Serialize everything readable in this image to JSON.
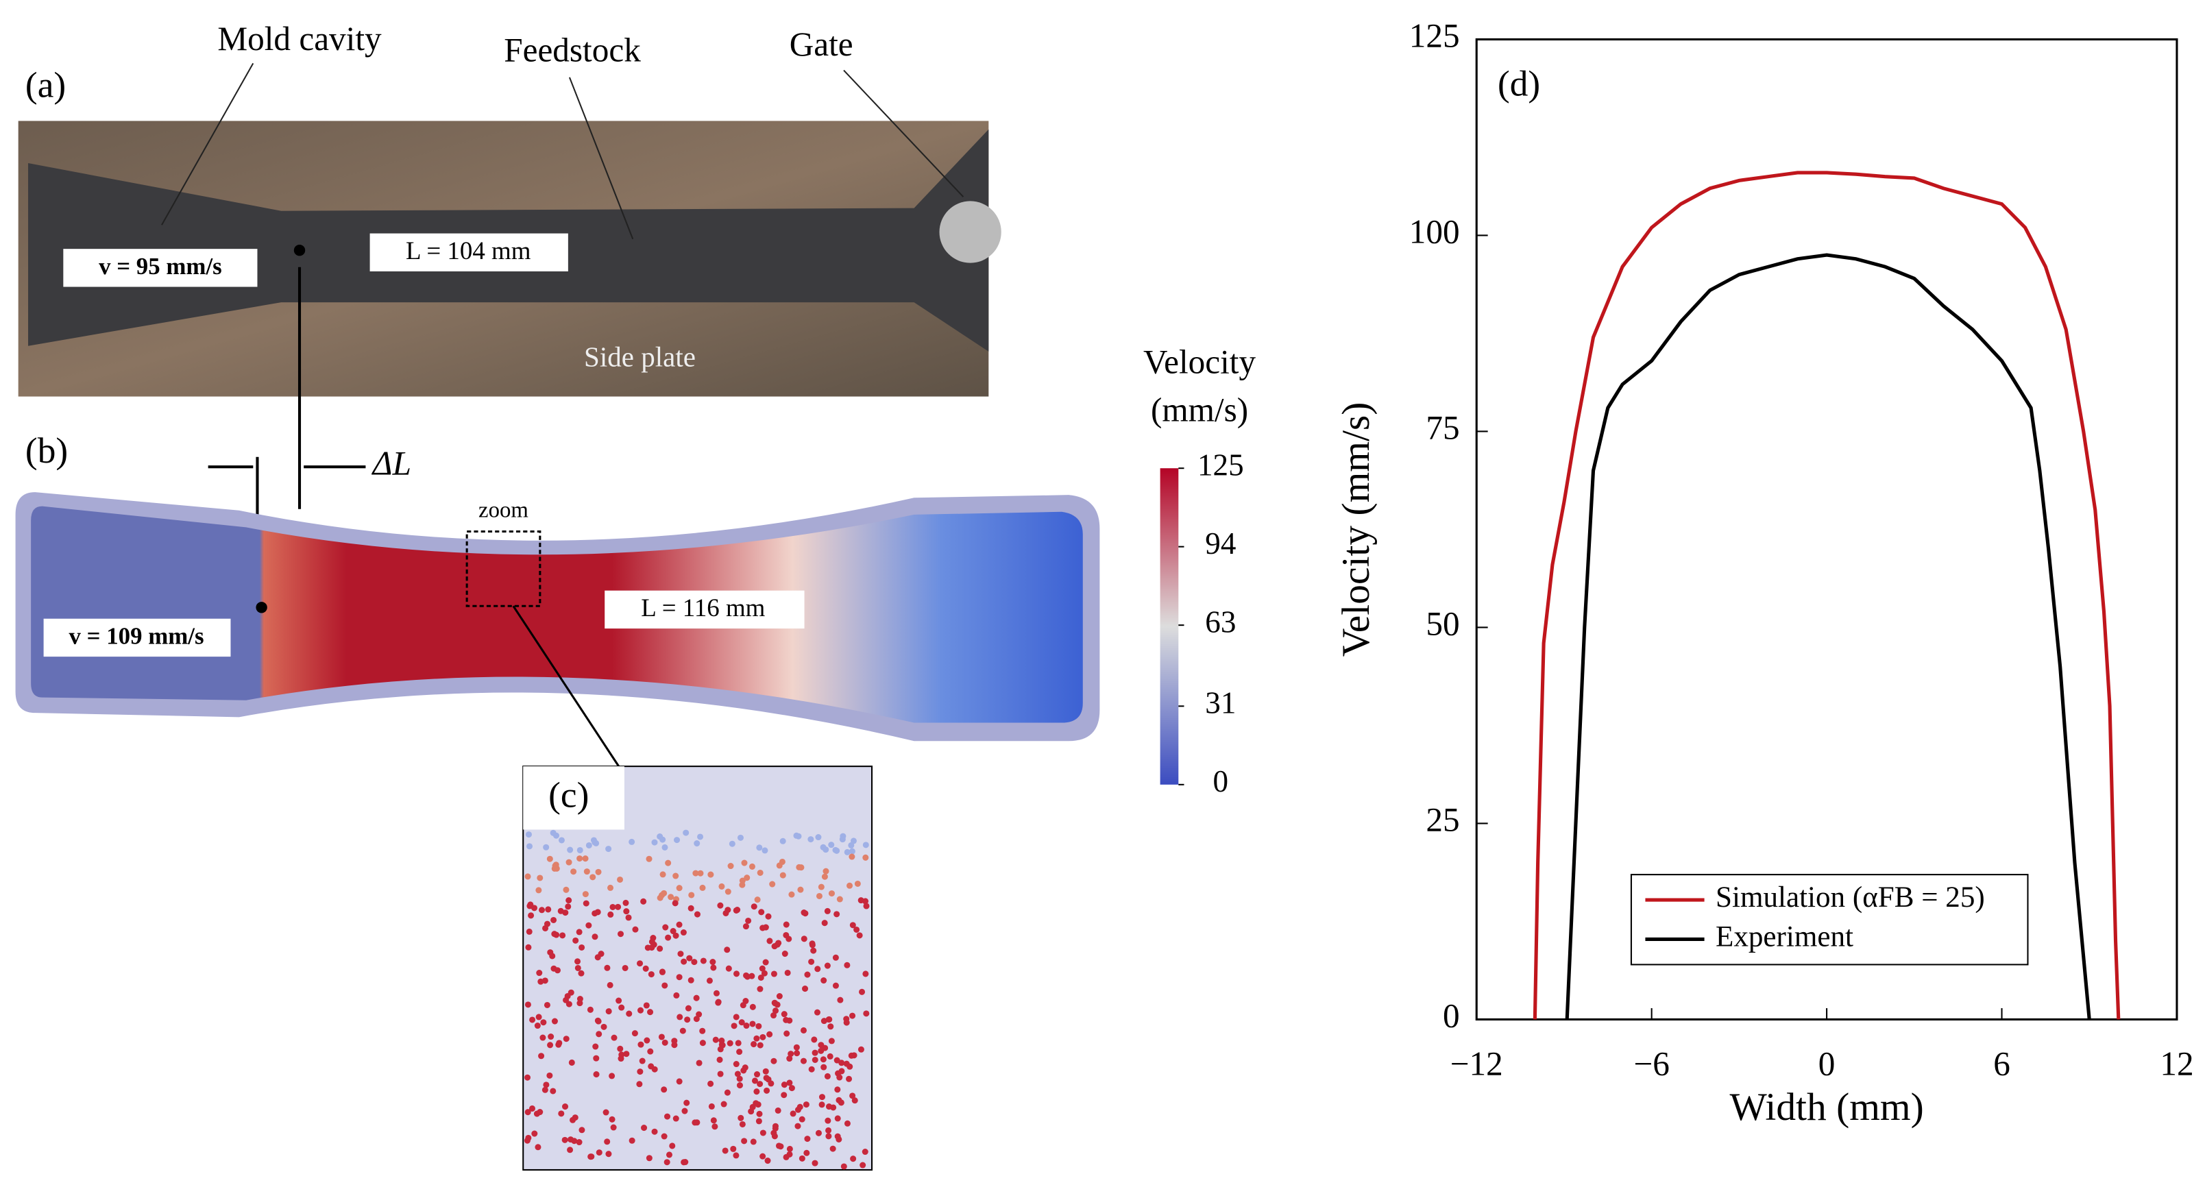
{
  "panel_a": {
    "label": "(a)",
    "mold": "Mold cavity",
    "feed": "Feedstock",
    "gate": "Gate",
    "speed": "v = 95 mm/s",
    "length": "L = 104 mm",
    "plate": "Side plate"
  },
  "panel_b": {
    "label": "(b)",
    "delta": "ΔL",
    "zoom": "zoom",
    "speed": "v = 109 mm/s",
    "length": "L = 116 mm"
  },
  "panel_c": {
    "label": "(c)"
  },
  "colorbar": {
    "title": [
      "Velocity",
      "(mm/s)"
    ],
    "ticks": [
      125,
      94,
      63,
      31,
      0
    ],
    "lim": [
      0,
      125
    ]
  },
  "chart_data": {
    "type": "line",
    "label": "(d)",
    "xlabel": "Width (mm)",
    "ylabel": "Velocity (mm/s)",
    "xlim": [
      -12,
      12
    ],
    "ylim": [
      0,
      125
    ],
    "xticks": [
      {
        "value": -12,
        "label": "−12"
      },
      {
        "value": -6,
        "label": "−6"
      },
      0,
      6,
      12
    ],
    "yticks": [
      0,
      25,
      50,
      75,
      100,
      125
    ],
    "legend": "lower center",
    "series": [
      {
        "name": "Simulation (αFB = 25)",
        "color": "#c0161c",
        "x": [
          -10,
          -9.9,
          -9.7,
          -9.4,
          -9,
          -8.6,
          -8,
          -7,
          -6,
          -5,
          -4,
          -3,
          -2,
          -1,
          0,
          1,
          2,
          3,
          4,
          5,
          6,
          6.8,
          7.5,
          8.2,
          8.8,
          9.2,
          9.5,
          9.7,
          9.8,
          9.9,
          10
        ],
        "values": [
          0,
          20,
          48,
          58,
          66,
          75,
          87,
          96,
          101,
          104,
          106,
          107,
          107.5,
          108,
          108,
          107.8,
          107.5,
          107.3,
          106,
          105,
          104,
          101,
          96,
          88,
          75,
          65,
          52,
          40,
          25,
          10,
          0
        ]
      },
      {
        "name": "Experiment",
        "color": "#000000",
        "x": [
          -8.9,
          -8.6,
          -8.3,
          -8,
          -7.5,
          -7,
          -6,
          -5,
          -4,
          -3,
          -2,
          -1,
          0,
          1,
          2,
          3,
          4,
          5,
          6,
          7,
          7.3,
          7.6,
          8,
          8.5,
          9
        ],
        "values": [
          0,
          25,
          50,
          70,
          78,
          81,
          84,
          89,
          93,
          95,
          96,
          97,
          97.5,
          97,
          96,
          94.5,
          91,
          88,
          84,
          78,
          70,
          60,
          45,
          20,
          0
        ]
      }
    ]
  }
}
